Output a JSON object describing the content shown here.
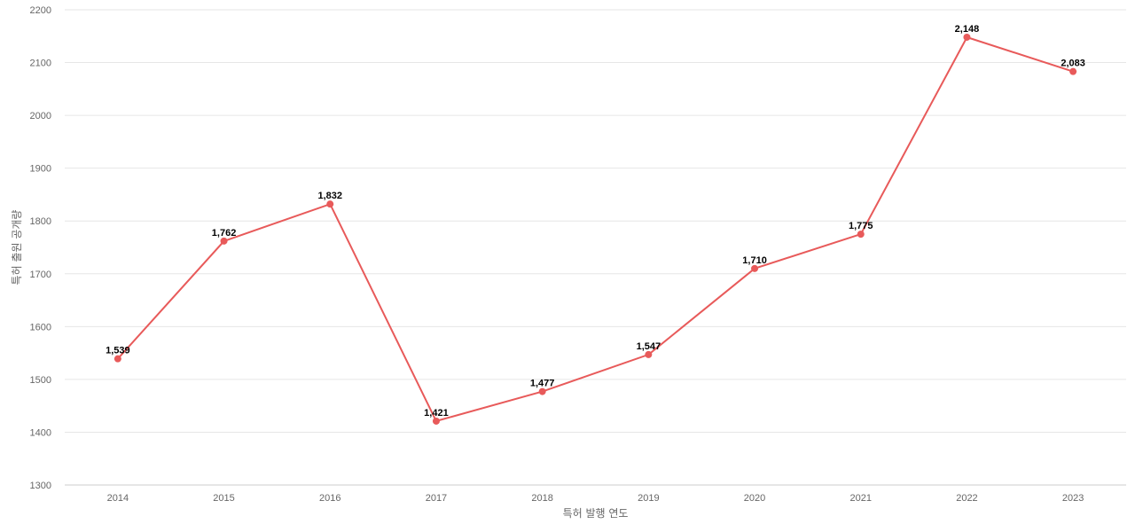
{
  "chart_data": {
    "type": "line",
    "title": "",
    "xlabel": "특허 발행 연도",
    "ylabel": "특허 출원 공개량",
    "categories": [
      "2014",
      "2015",
      "2016",
      "2017",
      "2018",
      "2019",
      "2020",
      "2021",
      "2022",
      "2023"
    ],
    "series": [
      {
        "values": [
          1539,
          1762,
          1832,
          1421,
          1477,
          1547,
          1710,
          1775,
          2148,
          2083
        ]
      }
    ],
    "data_labels": [
      "1,539",
      "1,762",
      "1,832",
      "1,421",
      "1,477",
      "1,547",
      "1,710",
      "1,775",
      "2,148",
      "2,083"
    ],
    "ylim": [
      1300,
      2200
    ],
    "yticks": [
      1300,
      1400,
      1500,
      1600,
      1700,
      1800,
      1900,
      2000,
      2100,
      2200
    ],
    "grid": true,
    "legend": "none",
    "colors": {
      "line": "#e85a5a",
      "grid": "#e6e6e6",
      "axis_text": "#666666"
    }
  }
}
